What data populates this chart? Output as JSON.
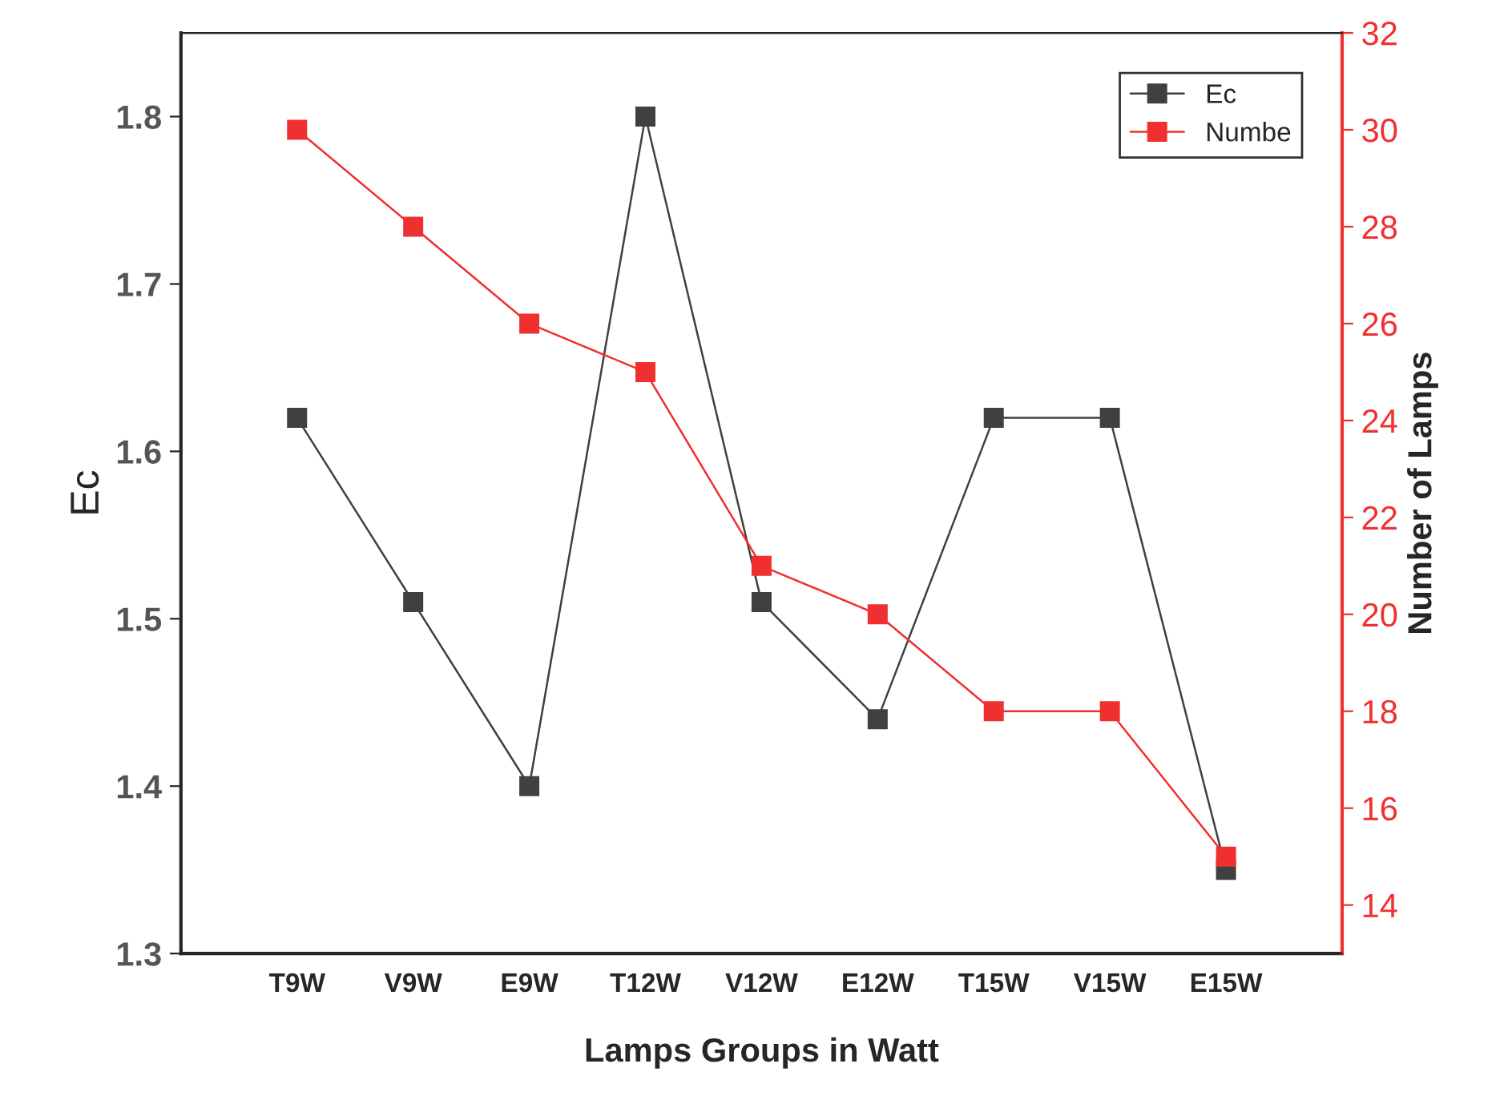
{
  "chart_data": {
    "type": "line",
    "xlabel": "Lamps Groups in Watt",
    "ylabel": "Ec",
    "y2label": "Number of Lamps",
    "categories": [
      "T9W",
      "V9W",
      "E9W",
      "T12W",
      "V12W",
      "E12W",
      "T15W",
      "V15W",
      "E15W"
    ],
    "series": [
      {
        "name": "Ec",
        "color": "#404040",
        "values": [
          1.62,
          1.51,
          1.4,
          1.8,
          1.51,
          1.44,
          1.62,
          1.62,
          1.35
        ]
      },
      {
        "name": "Numbe",
        "color": "#f03030",
        "axis": "y2",
        "values": [
          30,
          28,
          26,
          25,
          21,
          20,
          18,
          18,
          15
        ]
      }
    ],
    "ylim": [
      1.3,
      1.85
    ],
    "yticks": [
      1.3,
      1.4,
      1.5,
      1.6,
      1.7,
      1.8
    ],
    "y2lim": [
      13,
      32
    ],
    "y2ticks": [
      14,
      16,
      18,
      20,
      22,
      24,
      26,
      28,
      30,
      32
    ],
    "marker": "square",
    "line_style": "solid",
    "legend": "top right",
    "grid": false
  }
}
